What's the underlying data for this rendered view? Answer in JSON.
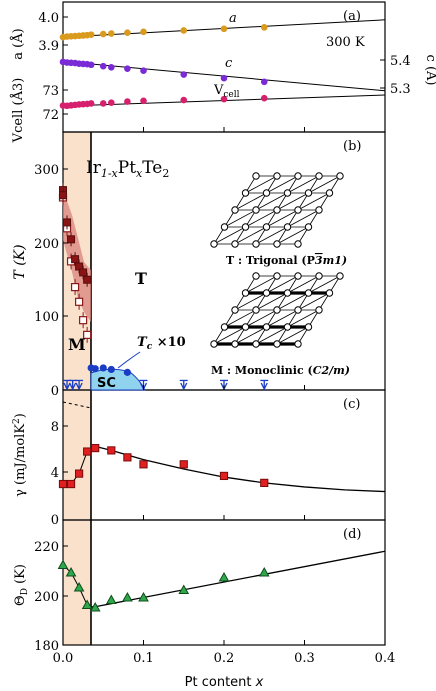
{
  "chart_data": [
    {
      "panel": "(a)",
      "type": "scatter",
      "xlabel": "",
      "ylabel_left": "a (Å)",
      "ylabel_left_lower": "Vcell (Å3)",
      "ylabel_right": "c (Å)",
      "annotation": "300 K",
      "series": [
        {
          "name": "a",
          "color": "#d99a1e",
          "x": [
            0.0,
            0.005,
            0.01,
            0.015,
            0.02,
            0.025,
            0.03,
            0.035,
            0.05,
            0.06,
            0.08,
            0.1,
            0.15,
            0.2,
            0.25
          ],
          "y": [
            3.928,
            3.93,
            3.931,
            3.932,
            3.933,
            3.934,
            3.935,
            3.937,
            3.939,
            3.941,
            3.944,
            3.947,
            3.952,
            3.958,
            3.963
          ]
        },
        {
          "name": "c",
          "color": "#7a2bd6",
          "x": [
            0.0,
            0.005,
            0.01,
            0.015,
            0.02,
            0.025,
            0.03,
            0.035,
            0.05,
            0.06,
            0.08,
            0.1,
            0.15,
            0.2,
            0.25
          ],
          "y": [
            5.393,
            5.391,
            5.39,
            5.389,
            5.387,
            5.386,
            5.385,
            5.383,
            5.378,
            5.374,
            5.369,
            5.362,
            5.348,
            5.335,
            5.322
          ]
        },
        {
          "name": "Vcell",
          "color": "#d6206e",
          "x": [
            0.0,
            0.005,
            0.01,
            0.015,
            0.02,
            0.025,
            0.03,
            0.035,
            0.05,
            0.06,
            0.08,
            0.1,
            0.15,
            0.2,
            0.25
          ],
          "y": [
            72.35,
            72.34,
            72.36,
            72.38,
            72.4,
            72.41,
            72.42,
            72.44,
            72.44,
            72.47,
            72.52,
            72.55,
            72.58,
            72.62,
            72.66
          ]
        }
      ],
      "fit_lines": {
        "a": [
          [
            0.0,
            3.928
          ],
          [
            0.4,
            3.99
          ]
        ],
        "c": [
          [
            0.0,
            5.395
          ],
          [
            0.4,
            5.29
          ]
        ],
        "Vcell": [
          [
            0.0,
            72.33
          ],
          [
            0.4,
            72.79
          ]
        ]
      },
      "ylim_left": [
        72.05,
        74.3
      ],
      "a_axis_range": [
        3.85,
        4.06
      ],
      "c_axis_range": [
        5.21,
        5.5
      ],
      "ticks_left_a": [
        "4.0",
        "3.9"
      ],
      "ticks_left_v": [
        "73",
        "72"
      ],
      "ticks_right": [
        "5.4",
        "5.3"
      ],
      "labels": {
        "a": "a",
        "c": "c",
        "v": "V",
        "v_sub": "cell"
      }
    },
    {
      "panel": "(b)",
      "type": "scatter",
      "title": "Ir",
      "title_parts": {
        "sub1": "1-x",
        "mid": "Pt",
        "sub2": "x",
        "end": "Te",
        "sub3": "2"
      },
      "ylabel": "T (K)",
      "ylim": [
        0,
        350
      ],
      "yticks": [
        "300",
        "200",
        "100",
        "0"
      ],
      "region_labels": {
        "T": "T",
        "M": "M",
        "SC": "SC"
      },
      "tc_label": "T",
      "tc_label_sub": "c",
      "tc_label_end": " ×10",
      "series": [
        {
          "name": "filled squares",
          "x": [
            0.0,
            0.0,
            0.005,
            0.01,
            0.015,
            0.02,
            0.025,
            0.03
          ],
          "y": [
            272,
            265,
            228,
            205,
            178,
            168,
            160,
            150
          ]
        },
        {
          "name": "open squares",
          "x": [
            0.0,
            0.005,
            0.01,
            0.015,
            0.02,
            0.025,
            0.03
          ],
          "y": [
            262,
            220,
            175,
            140,
            120,
            95,
            75
          ]
        },
        {
          "name": "Tc ×10",
          "x": [
            0.035,
            0.04,
            0.05,
            0.06,
            0.08
          ],
          "y": [
            30,
            29,
            30,
            28,
            24
          ]
        },
        {
          "name": "Tc upper limit arrows",
          "x": [
            0.005,
            0.012,
            0.02,
            0.1,
            0.15,
            0.2,
            0.25
          ],
          "y": [
            13,
            13,
            13,
            13,
            13,
            13,
            13
          ]
        }
      ],
      "legend_trigonal": "T : Trigonal (P",
      "legend_trigonal_group": {
        "a": "3",
        "b": "m1)"
      },
      "legend_monoclinic": "M : Monoclinic (",
      "legend_monoclinic_group": "C2/m)"
    },
    {
      "panel": "(c)",
      "type": "scatter",
      "ylabel": "γ (mJ/molK",
      "ylabel_sup": "2",
      "ylabel_end": ")",
      "ylim": [
        0,
        9.5
      ],
      "yticks": [
        "8",
        "4",
        "0"
      ],
      "series": [
        {
          "name": "gamma",
          "color": "#e02020",
          "x": [
            0.0,
            0.01,
            0.02,
            0.03,
            0.04,
            0.06,
            0.08,
            0.1,
            0.15,
            0.2,
            0.25
          ],
          "y": [
            3.1,
            3.1,
            4.0,
            5.9,
            6.2,
            6.0,
            5.4,
            4.8,
            4.8,
            3.8,
            3.2
          ]
        }
      ],
      "fit_curve": [
        [
          0.04,
          6.35
        ],
        [
          0.06,
          6.0
        ],
        [
          0.08,
          5.6
        ],
        [
          0.1,
          5.2
        ],
        [
          0.15,
          4.4
        ],
        [
          0.2,
          3.7
        ],
        [
          0.25,
          3.2
        ],
        [
          0.3,
          2.85
        ],
        [
          0.35,
          2.6
        ],
        [
          0.4,
          2.45
        ]
      ]
    },
    {
      "panel": "(d)",
      "type": "scatter",
      "ylabel": "Θ",
      "ylabel_sub": "D",
      "ylabel_end": " (K)",
      "ylim": [
        180,
        227
      ],
      "yticks": [
        "220",
        "200",
        "180"
      ],
      "xlabel": "Pt content ",
      "xlabel_var": "x",
      "xlim": [
        0,
        0.4
      ],
      "xticks": [
        "0.0",
        "0.1",
        "0.2",
        "0.3",
        "0.4"
      ],
      "series": [
        {
          "name": "ThetaD",
          "color": "#2ea84a",
          "x": [
            0.0,
            0.01,
            0.02,
            0.03,
            0.04,
            0.06,
            0.08,
            0.1,
            0.15,
            0.2,
            0.25
          ],
          "y": [
            212,
            209,
            203,
            196,
            195,
            198,
            199,
            199,
            202,
            207,
            209
          ]
        }
      ],
      "fit_line": [
        [
          0.035,
          195
        ],
        [
          0.4,
          217.5
        ]
      ]
    }
  ]
}
